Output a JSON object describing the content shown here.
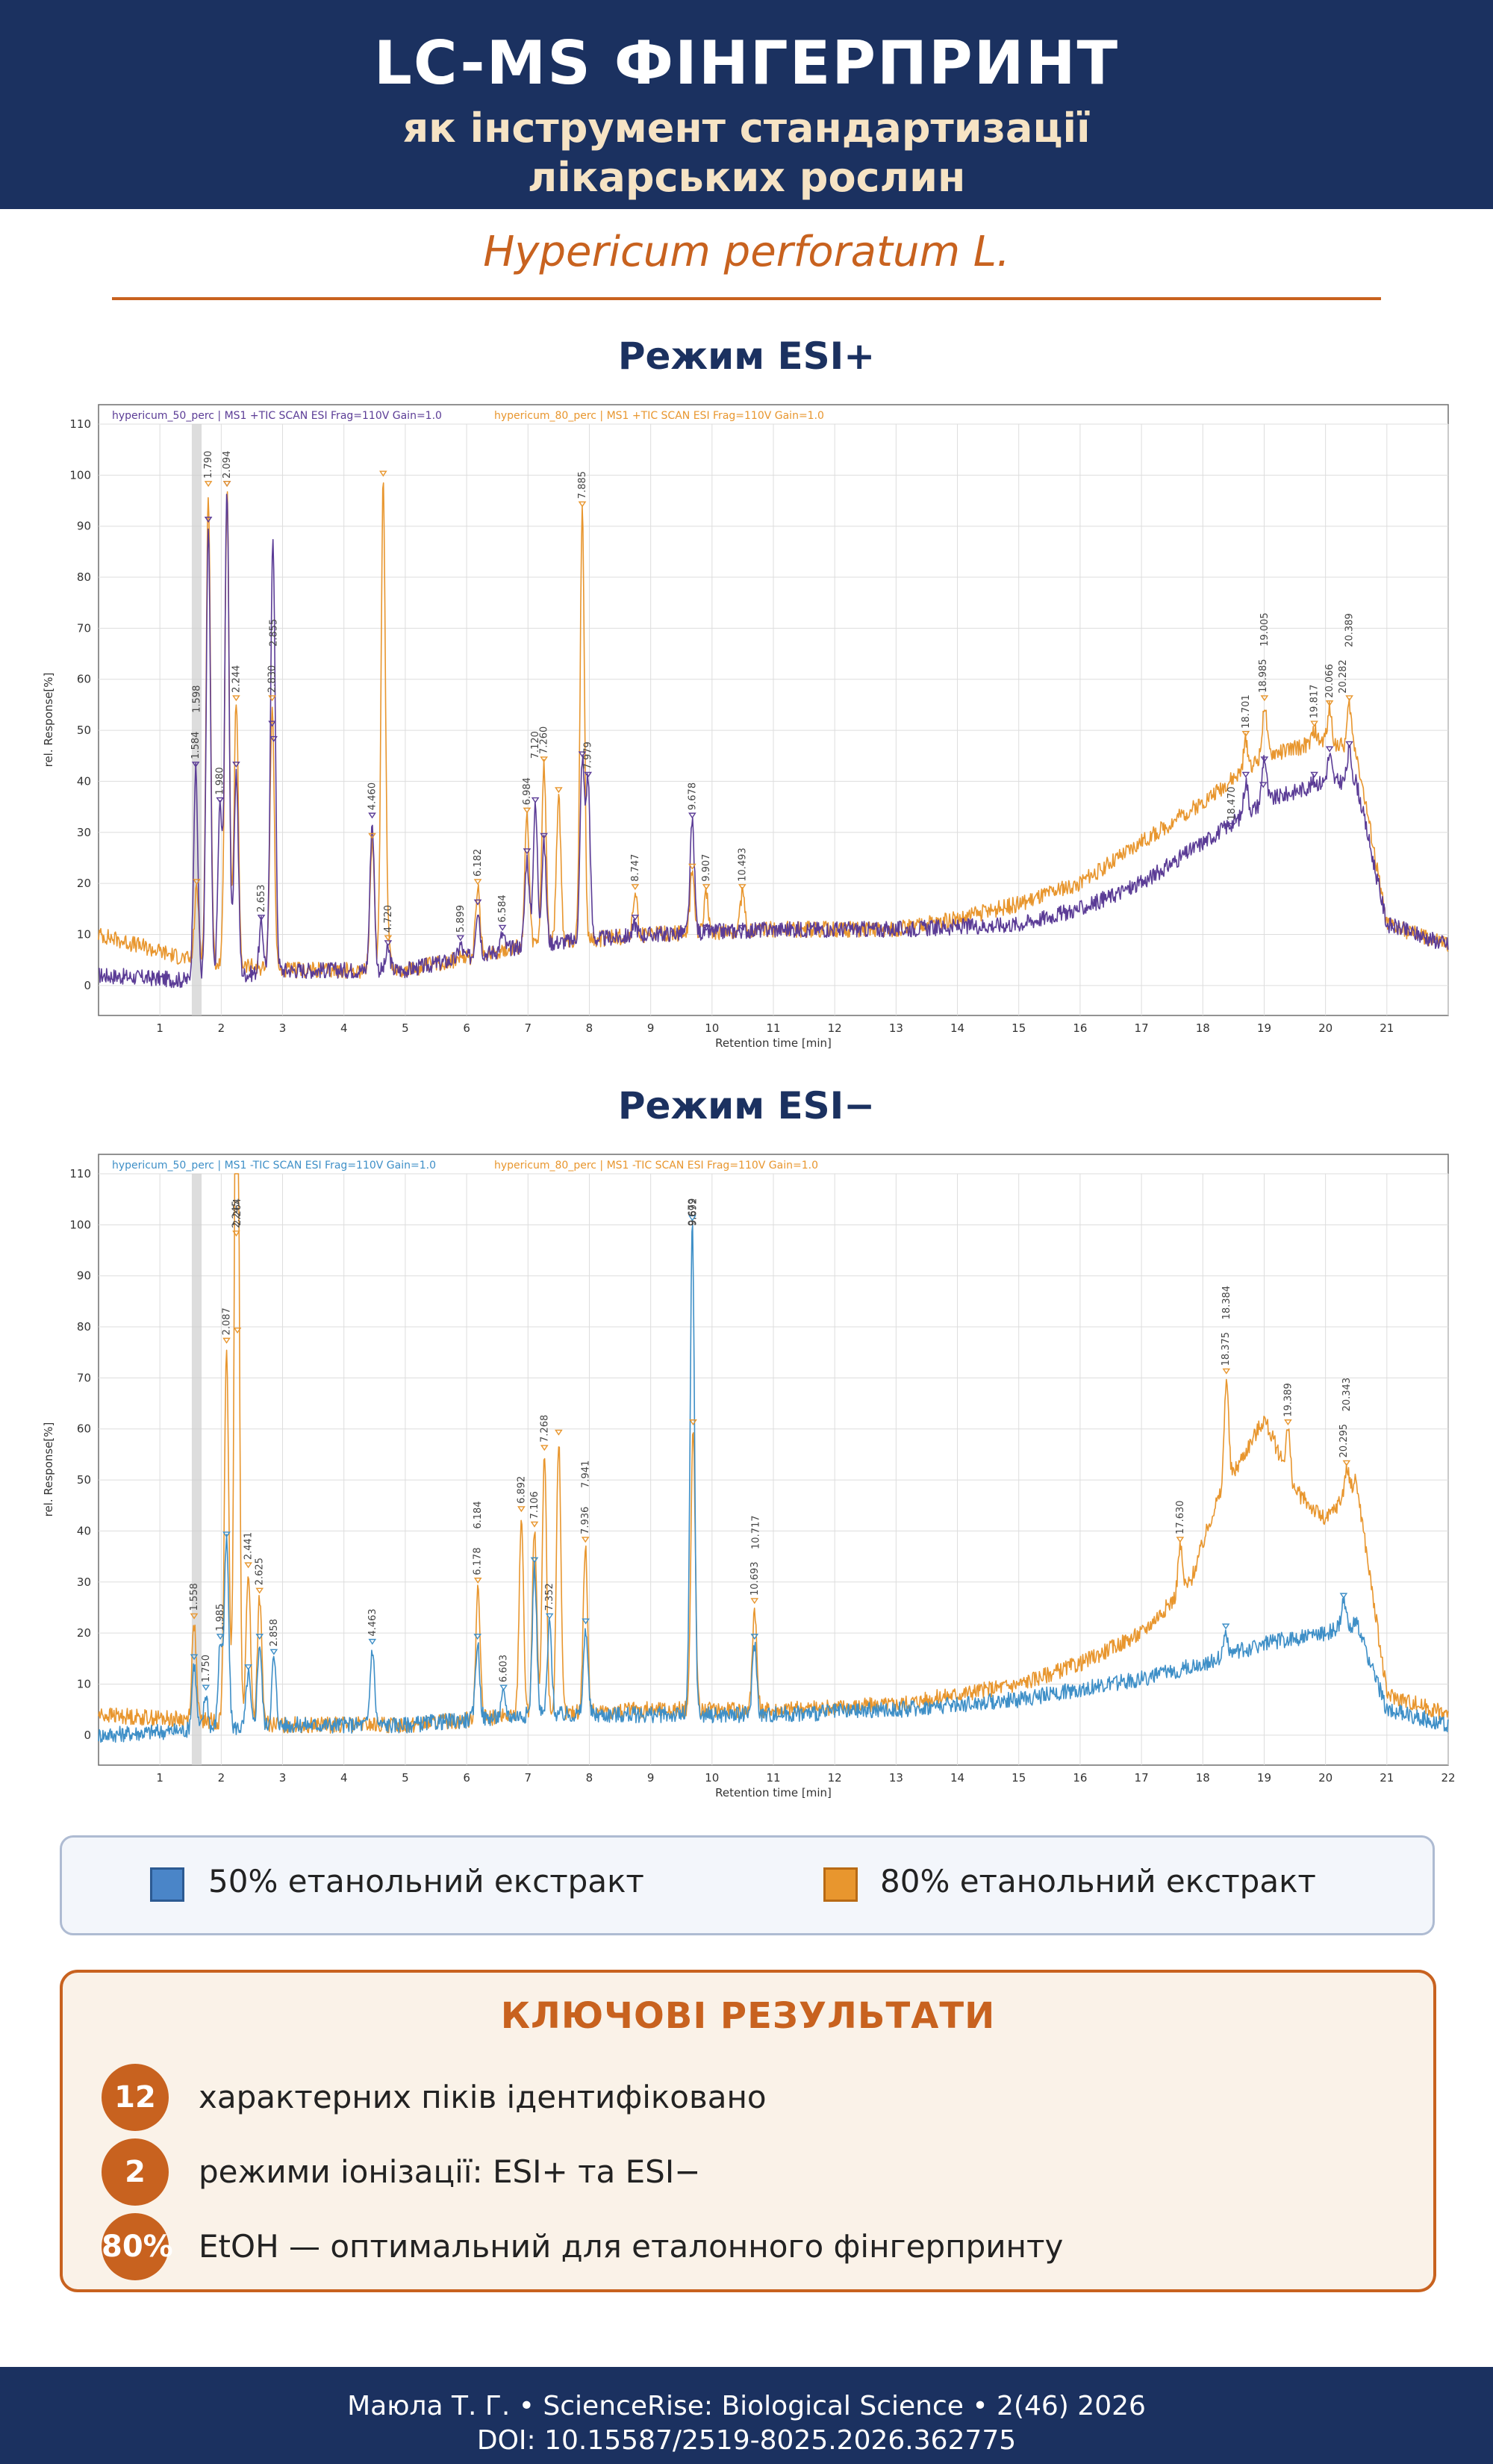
{
  "header": {
    "title": "LC-MS ФІНГЕРПРИНТ",
    "subtitle_line1": "як інструмент стандартизації",
    "subtitle_line2": "лікарських рослин"
  },
  "species": "Hypericum perforatum L.",
  "colors": {
    "navy": "#1b3160",
    "accent": "#c8621f",
    "series_50_pos": "#5b3c96",
    "series_50_neg": "#3e8fc7",
    "series_80": "#e8962e"
  },
  "legend": {
    "item50": "50% етанольний екстракт",
    "item80": "80% етанольний екстракт",
    "color50": "#4a85c8",
    "color80": "#e8962e"
  },
  "results": {
    "title": "КЛЮЧОВІ РЕЗУЛЬТАТИ",
    "items": [
      {
        "badge": "12",
        "text": "характерних піків ідентифіковано"
      },
      {
        "badge": "2",
        "text": "режими іонізації: ESI+ та ESI−"
      },
      {
        "badge": "80%",
        "text": "EtOH — оптимальний для еталонного фінгерпринту"
      }
    ]
  },
  "footer": {
    "line1": "Маюла Т. Г. • ScienceRise: Biological Science • 2(46) 2026",
    "line2": "DOI: 10.15587/2519-8025.2026.362775"
  },
  "chart_data": [
    {
      "type": "line",
      "title": "Режим ESI+",
      "xlabel": "Retention time [min]",
      "ylabel": "rel. Response[%]",
      "xlim": [
        0,
        22
      ],
      "ylim": [
        -5,
        110
      ],
      "x_ticks": [
        "1",
        "2",
        "3",
        "4",
        "5",
        "6",
        "7",
        "8",
        "9",
        "10",
        "11",
        "12",
        "13",
        "14",
        "15",
        "16",
        "17",
        "18",
        "19",
        "20",
        "21"
      ],
      "y_ticks": [
        "0",
        "10",
        "20",
        "30",
        "40",
        "50",
        "60",
        "70",
        "80",
        "90",
        "100",
        "110"
      ],
      "grid": true,
      "legend_position": "top",
      "series": [
        {
          "name": "hypericum_50_perc | MS1 +TIC SCAN ESI Frag=110V Gain=1.0",
          "color": "#5b3c96",
          "baseline": [
            [
              0,
              2
            ],
            [
              1.5,
              1
            ],
            [
              3,
              3
            ],
            [
              5,
              3
            ],
            [
              7,
              8
            ],
            [
              9,
              10
            ],
            [
              11,
              11
            ],
            [
              13,
              11
            ],
            [
              15,
              12
            ],
            [
              16,
              15
            ],
            [
              17,
              20
            ],
            [
              18,
              28
            ],
            [
              19,
              36
            ],
            [
              20,
              40
            ],
            [
              20.5,
              40
            ],
            [
              21,
              12
            ],
            [
              22,
              8
            ]
          ],
          "peaks": [
            [
              1.584,
              42
            ],
            [
              1.79,
              90
            ],
            [
              1.98,
              35
            ],
            [
              2.094,
              97
            ],
            [
              2.244,
              42
            ],
            [
              2.653,
              12
            ],
            [
              2.83,
              50
            ],
            [
              2.855,
              47
            ],
            [
              4.46,
              32
            ],
            [
              4.72,
              7
            ],
            [
              5.899,
              8
            ],
            [
              6.182,
              15
            ],
            [
              6.584,
              10
            ],
            [
              6.984,
              25
            ],
            [
              7.12,
              35
            ],
            [
              7.26,
              28
            ],
            [
              7.885,
              44
            ],
            [
              7.979,
              40
            ],
            [
              8.747,
              12
            ],
            [
              9.678,
              32
            ],
            [
              9.907,
              10
            ],
            [
              10.493,
              10
            ],
            [
              18.47,
              30
            ],
            [
              18.701,
              40
            ],
            [
              18.985,
              38
            ],
            [
              19.005,
              43
            ],
            [
              19.817,
              40
            ],
            [
              20.066,
              45
            ],
            [
              20.389,
              46
            ]
          ]
        },
        {
          "name": "hypericum_80_perc | MS1 +TIC SCAN ESI Frag=110V Gain=1.0",
          "color": "#e8962e",
          "baseline": [
            [
              0,
              10
            ],
            [
              1.5,
              5
            ],
            [
              3,
              3
            ],
            [
              5,
              3
            ],
            [
              7,
              8
            ],
            [
              9,
              10
            ],
            [
              11,
              11
            ],
            [
              13,
              11
            ],
            [
              14,
              13
            ],
            [
              15,
              16
            ],
            [
              16,
              20
            ],
            [
              17,
              28
            ],
            [
              18,
              36
            ],
            [
              19,
              45
            ],
            [
              20,
              48
            ],
            [
              20.5,
              46
            ],
            [
              21,
              12
            ],
            [
              22,
              8
            ]
          ],
          "peaks": [
            [
              1.6,
              19
            ],
            [
              1.79,
              97
            ],
            [
              2.094,
              97
            ],
            [
              2.244,
              55
            ],
            [
              2.83,
              55
            ],
            [
              4.46,
              28
            ],
            [
              4.64,
              99
            ],
            [
              4.72,
              8
            ],
            [
              6.182,
              19
            ],
            [
              6.984,
              33
            ],
            [
              7.26,
              43
            ],
            [
              7.5,
              37
            ],
            [
              7.885,
              93
            ],
            [
              8.747,
              18
            ],
            [
              9.678,
              22
            ],
            [
              9.907,
              18
            ],
            [
              10.493,
              18
            ],
            [
              18.701,
              48
            ],
            [
              19.005,
              55
            ],
            [
              19.817,
              50
            ],
            [
              20.066,
              54
            ],
            [
              20.389,
              55
            ]
          ]
        }
      ],
      "annotations": [
        "1.584",
        "1.598",
        "1.790",
        "1.980",
        "2.094",
        "2.244",
        "2.653",
        "2.830",
        "2.855",
        "4.460",
        "4.720",
        "5.899",
        "6.182",
        "6.584",
        "6.984",
        "7.120",
        "7.260",
        "7.885",
        "7.979",
        "8.747",
        "9.678",
        "9.907",
        "10.493",
        "18.470",
        "18.701",
        "18.985",
        "19.005",
        "19.817",
        "20.066",
        "20.282",
        "20.389"
      ]
    },
    {
      "type": "line",
      "title": "Режим ESI−",
      "xlabel": "Retention time [min]",
      "ylabel": "rel. Response[%]",
      "xlim": [
        0,
        22
      ],
      "ylim": [
        -5,
        110
      ],
      "x_ticks": [
        "1",
        "2",
        "3",
        "4",
        "5",
        "6",
        "7",
        "8",
        "9",
        "10",
        "11",
        "12",
        "13",
        "14",
        "15",
        "16",
        "17",
        "18",
        "19",
        "20",
        "21",
        "22"
      ],
      "y_ticks": [
        "0",
        "10",
        "20",
        "30",
        "40",
        "50",
        "60",
        "70",
        "80",
        "90",
        "100",
        "110"
      ],
      "grid": true,
      "legend_position": "top",
      "series": [
        {
          "name": "hypericum_50_perc | MS1 -TIC SCAN ESI Frag=110V Gain=1.0",
          "color": "#3e8fc7",
          "baseline": [
            [
              0,
              0
            ],
            [
              1.5,
              1
            ],
            [
              3,
              2
            ],
            [
              5,
              2
            ],
            [
              7,
              4
            ],
            [
              9,
              4
            ],
            [
              11,
              4
            ],
            [
              13,
              5
            ],
            [
              15,
              7
            ],
            [
              16,
              9
            ],
            [
              17,
              11
            ],
            [
              18,
              14
            ],
            [
              19,
              18
            ],
            [
              20,
              20
            ],
            [
              20.5,
              22
            ],
            [
              21,
              5
            ],
            [
              22,
              2
            ]
          ],
          "peaks": [
            [
              1.558,
              14
            ],
            [
              1.75,
              8
            ],
            [
              1.985,
              18
            ],
            [
              2.087,
              38
            ],
            [
              2.441,
              12
            ],
            [
              2.625,
              18
            ],
            [
              2.858,
              15
            ],
            [
              4.463,
              17
            ],
            [
              6.178,
              18
            ],
            [
              6.603,
              8
            ],
            [
              7.106,
              33
            ],
            [
              7.352,
              22
            ],
            [
              7.941,
              21
            ],
            [
              9.679,
              100
            ],
            [
              10.693,
              18
            ],
            [
              18.375,
              20
            ],
            [
              20.295,
              26
            ]
          ]
        },
        {
          "name": "hypericum_80_perc | MS1 -TIC SCAN ESI Frag=110V Gain=1.0",
          "color": "#e8962e",
          "baseline": [
            [
              0,
              4
            ],
            [
              1.5,
              3
            ],
            [
              3,
              2
            ],
            [
              5,
              2
            ],
            [
              7,
              4
            ],
            [
              9,
              5
            ],
            [
              11,
              5
            ],
            [
              13,
              6
            ],
            [
              15,
              10
            ],
            [
              16,
              14
            ],
            [
              17,
              20
            ],
            [
              17.8,
              30
            ],
            [
              18.2,
              45
            ],
            [
              19,
              62
            ],
            [
              19.5,
              48
            ],
            [
              20,
              42
            ],
            [
              20.5,
              50
            ],
            [
              21,
              8
            ],
            [
              22,
              4
            ]
          ],
          "peaks": [
            [
              1.558,
              22
            ],
            [
              2.087,
              76
            ],
            [
              2.245,
              97
            ],
            [
              2.264,
              78
            ],
            [
              2.441,
              32
            ],
            [
              2.625,
              27
            ],
            [
              6.184,
              29
            ],
            [
              6.892,
              43
            ],
            [
              7.106,
              40
            ],
            [
              7.268,
              55
            ],
            [
              7.5,
              58
            ],
            [
              7.936,
              37
            ],
            [
              9.692,
              60
            ],
            [
              10.693,
              25
            ],
            [
              17.63,
              37
            ],
            [
              18.384,
              70
            ],
            [
              19.389,
              60
            ],
            [
              20.343,
              52
            ]
          ]
        }
      ],
      "annotations": [
        "1.558",
        "1.750",
        "1.985",
        "2.087",
        "2.245",
        "2.264",
        "2.441",
        "2.625",
        "2.858",
        "4.463",
        "6.178",
        "6.184",
        "6.603",
        "6.892",
        "7.106",
        "7.268",
        "7.352",
        "7.936",
        "7.941",
        "9.679",
        "9.692",
        "10.693",
        "10.717",
        "17.630",
        "18.375",
        "18.384",
        "19.389",
        "20.295",
        "20.343"
      ]
    }
  ]
}
